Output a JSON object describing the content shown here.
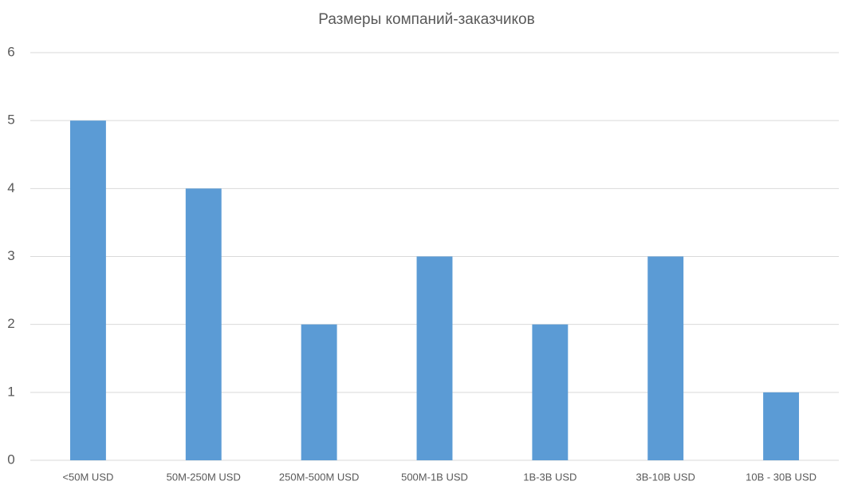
{
  "chart_data": {
    "type": "bar",
    "title": "Размеры компаний-заказчиков",
    "categories": [
      "<50M USD",
      "50M-250M USD",
      "250M-500M USD",
      "500M-1B USD",
      "1B-3B USD",
      "3B-10B USD",
      "10B - 30B USD"
    ],
    "values": [
      5,
      4,
      2,
      3,
      2,
      3,
      1
    ],
    "color": "#5b9bd5",
    "ylim": [
      0,
      6
    ],
    "yticks": [
      0,
      1,
      2,
      3,
      4,
      5,
      6
    ],
    "grid": true
  }
}
